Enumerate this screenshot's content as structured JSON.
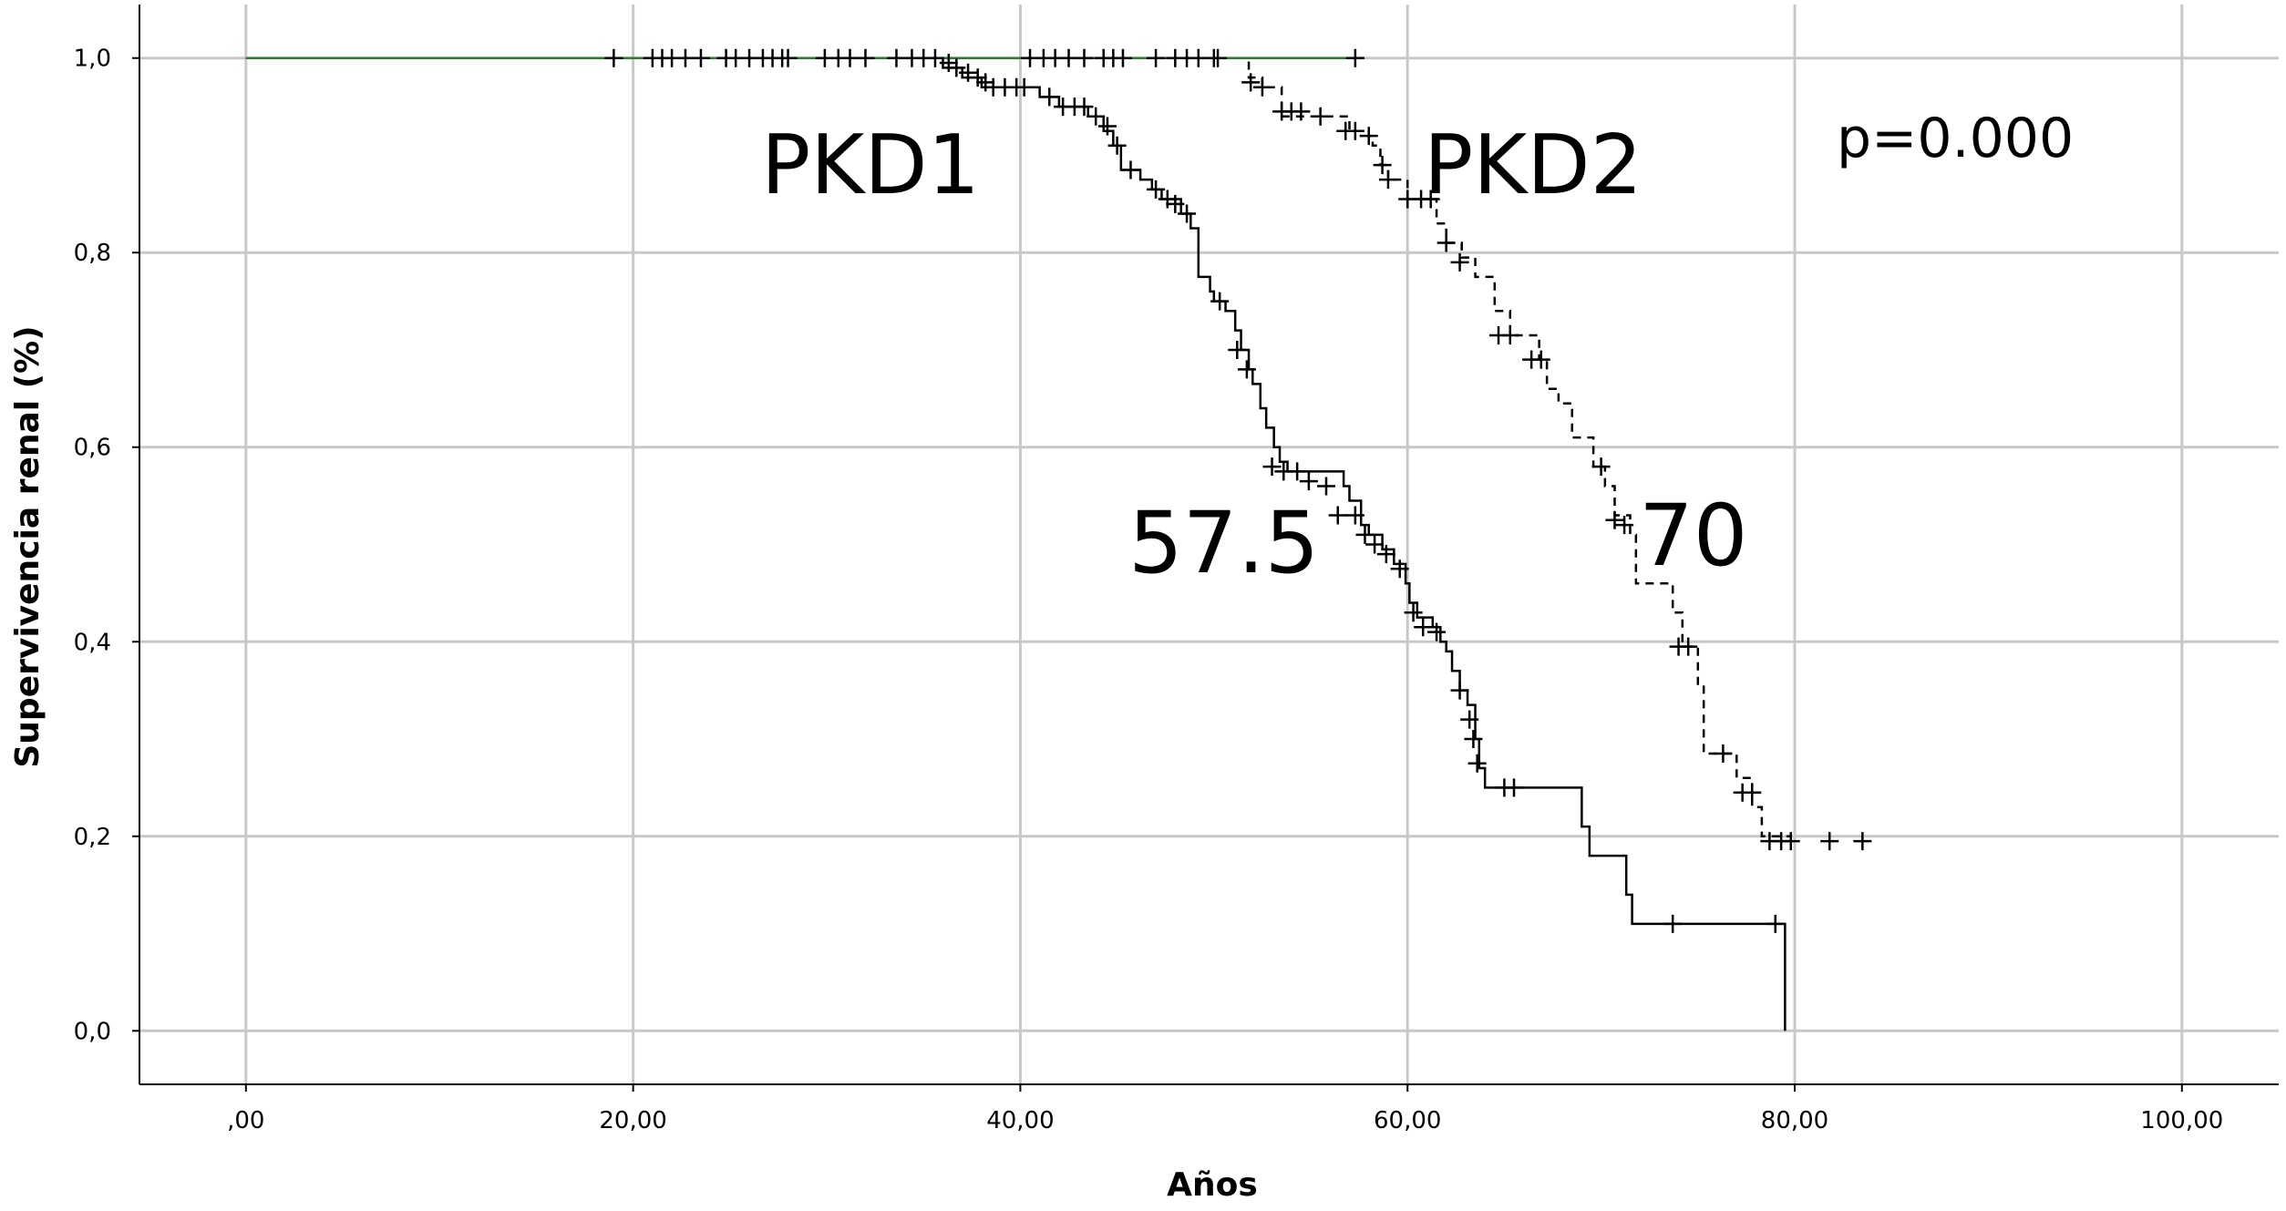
{
  "chart_data": {
    "type": "line",
    "subtype": "kaplan-meier",
    "xlabel": "Años",
    "ylabel": "Supervivencia renal (%)",
    "x_ticks": [
      ",00",
      "20,00",
      "40,00",
      "60,00",
      "80,00",
      "100,00"
    ],
    "x_tick_values": [
      0,
      20,
      40,
      60,
      80,
      100
    ],
    "y_ticks": [
      "0,0",
      "0,2",
      "0,4",
      "0,6",
      "0,8",
      "1,0"
    ],
    "y_tick_values": [
      0,
      0.2,
      0.4,
      0.6,
      0.8,
      1.0
    ],
    "xlim": [
      -5.5,
      105
    ],
    "ylim": [
      -0.055,
      1.055
    ],
    "grid": true,
    "legend": "none",
    "series": [
      {
        "name": "PKD1",
        "style": "solid",
        "color": "#000000",
        "steps": [
          [
            0,
            1.0
          ],
          [
            36,
            0.99
          ],
          [
            37,
            0.98
          ],
          [
            38,
            0.97
          ],
          [
            41,
            0.96
          ],
          [
            42,
            0.95
          ],
          [
            43.5,
            0.94
          ],
          [
            44.3,
            0.925
          ],
          [
            44.8,
            0.91
          ],
          [
            45.2,
            0.885
          ],
          [
            46.2,
            0.875
          ],
          [
            46.8,
            0.865
          ],
          [
            47.3,
            0.855
          ],
          [
            48.3,
            0.84
          ],
          [
            48.8,
            0.825
          ],
          [
            49.2,
            0.775
          ],
          [
            49.8,
            0.76
          ],
          [
            50,
            0.75
          ],
          [
            50.6,
            0.74
          ],
          [
            51.1,
            0.72
          ],
          [
            51.4,
            0.7
          ],
          [
            51.8,
            0.68
          ],
          [
            52,
            0.665
          ],
          [
            52.4,
            0.64
          ],
          [
            52.7,
            0.62
          ],
          [
            53.1,
            0.6
          ],
          [
            53.4,
            0.585
          ],
          [
            53.8,
            0.575
          ],
          [
            56.7,
            0.56
          ],
          [
            57,
            0.545
          ],
          [
            57.6,
            0.52
          ],
          [
            58,
            0.51
          ],
          [
            58.7,
            0.495
          ],
          [
            59.3,
            0.48
          ],
          [
            59.9,
            0.46
          ],
          [
            60.1,
            0.44
          ],
          [
            60.5,
            0.425
          ],
          [
            61.3,
            0.415
          ],
          [
            61.7,
            0.4
          ],
          [
            62,
            0.39
          ],
          [
            62.3,
            0.37
          ],
          [
            62.7,
            0.35
          ],
          [
            63.1,
            0.335
          ],
          [
            63.5,
            0.3
          ],
          [
            63.7,
            0.27
          ],
          [
            64,
            0.25
          ],
          [
            69,
            0.21
          ],
          [
            69.4,
            0.18
          ],
          [
            71.3,
            0.14
          ],
          [
            71.6,
            0.11
          ],
          [
            79.5,
            0.0
          ]
        ],
        "end_x": 79.5,
        "censored": [
          [
            19,
            1.0
          ],
          [
            21,
            1.0
          ],
          [
            21.5,
            1.0
          ],
          [
            22,
            1.0
          ],
          [
            22.7,
            1.0
          ],
          [
            23.5,
            1.0
          ],
          [
            24.8,
            1.0
          ],
          [
            25.3,
            1.0
          ],
          [
            26,
            1.0
          ],
          [
            26.7,
            1.0
          ],
          [
            27.2,
            1.0
          ],
          [
            27.7,
            1.0
          ],
          [
            28,
            1.0
          ],
          [
            29.9,
            1.0
          ],
          [
            30.6,
            1.0
          ],
          [
            31.2,
            1.0
          ],
          [
            32,
            1.0
          ],
          [
            33.6,
            1.0
          ],
          [
            34.4,
            1.0
          ],
          [
            35,
            1.0
          ],
          [
            35.6,
            1.0
          ],
          [
            36.3,
            0.995
          ],
          [
            36.7,
            0.99
          ],
          [
            37.3,
            0.985
          ],
          [
            37.8,
            0.98
          ],
          [
            38.2,
            0.975
          ],
          [
            38.6,
            0.97
          ],
          [
            39.2,
            0.97
          ],
          [
            39.8,
            0.97
          ],
          [
            40.2,
            0.97
          ],
          [
            41.5,
            0.96
          ],
          [
            42.2,
            0.95
          ],
          [
            42.8,
            0.95
          ],
          [
            43.3,
            0.95
          ],
          [
            43.9,
            0.94
          ],
          [
            44.5,
            0.93
          ],
          [
            45,
            0.91
          ],
          [
            45.7,
            0.885
          ],
          [
            47,
            0.865
          ],
          [
            47.6,
            0.855
          ],
          [
            48,
            0.85
          ],
          [
            48.6,
            0.84
          ],
          [
            50.3,
            0.75
          ],
          [
            51.2,
            0.7
          ],
          [
            51.7,
            0.68
          ],
          [
            53,
            0.58
          ],
          [
            53.6,
            0.575
          ],
          [
            54.3,
            0.575
          ],
          [
            54.9,
            0.565
          ],
          [
            55.8,
            0.56
          ],
          [
            56.4,
            0.53
          ],
          [
            57.3,
            0.53
          ],
          [
            57.8,
            0.51
          ],
          [
            58.3,
            0.5
          ],
          [
            58.9,
            0.49
          ],
          [
            59.6,
            0.475
          ],
          [
            60.3,
            0.43
          ],
          [
            60.8,
            0.415
          ],
          [
            61.5,
            0.41
          ],
          [
            62.7,
            0.35
          ],
          [
            63.2,
            0.32
          ],
          [
            63.4,
            0.3
          ],
          [
            63.6,
            0.275
          ],
          [
            65,
            0.25
          ],
          [
            65.5,
            0.25
          ],
          [
            73.7,
            0.11
          ],
          [
            79,
            0.11
          ]
        ]
      },
      {
        "name": "PKD2",
        "style": "dashed",
        "color": "#000000",
        "steps": [
          [
            0,
            1.0
          ],
          [
            51.8,
            0.98
          ],
          [
            52.5,
            0.97
          ],
          [
            53.5,
            0.94
          ],
          [
            57,
            0.925
          ],
          [
            58,
            0.92
          ],
          [
            58.2,
            0.91
          ],
          [
            58.6,
            0.89
          ],
          [
            59,
            0.875
          ],
          [
            60,
            0.855
          ],
          [
            61.5,
            0.83
          ],
          [
            62,
            0.81
          ],
          [
            62.8,
            0.795
          ],
          [
            63.5,
            0.775
          ],
          [
            64.5,
            0.74
          ],
          [
            65.3,
            0.715
          ],
          [
            66.8,
            0.69
          ],
          [
            67.2,
            0.66
          ],
          [
            67.8,
            0.645
          ],
          [
            68.5,
            0.61
          ],
          [
            69.6,
            0.58
          ],
          [
            70.2,
            0.56
          ],
          [
            70.7,
            0.53
          ],
          [
            71.5,
            0.51
          ],
          [
            71.8,
            0.46
          ],
          [
            73.7,
            0.43
          ],
          [
            74.2,
            0.395
          ],
          [
            75,
            0.355
          ],
          [
            75.3,
            0.285
          ],
          [
            77,
            0.26
          ],
          [
            77.8,
            0.23
          ],
          [
            78.3,
            0.2
          ],
          [
            79.8,
            0.2
          ]
        ],
        "end_x": 79.8,
        "censored": [
          [
            51.9,
            0.975
          ],
          [
            52.5,
            0.97
          ],
          [
            53.5,
            0.945
          ],
          [
            54,
            0.945
          ],
          [
            54.5,
            0.945
          ],
          [
            55.5,
            0.94
          ],
          [
            56.8,
            0.925
          ],
          [
            57.3,
            0.925
          ],
          [
            58,
            0.92
          ],
          [
            58.7,
            0.89
          ],
          [
            59,
            0.875
          ],
          [
            60,
            0.855
          ],
          [
            60.7,
            0.855
          ],
          [
            61.2,
            0.855
          ],
          [
            62,
            0.81
          ],
          [
            62.7,
            0.79
          ],
          [
            64.7,
            0.715
          ],
          [
            65.3,
            0.715
          ],
          [
            66.4,
            0.69
          ],
          [
            66.9,
            0.69
          ],
          [
            70,
            0.58
          ],
          [
            70.7,
            0.525
          ],
          [
            71.2,
            0.52
          ],
          [
            74,
            0.395
          ],
          [
            74.5,
            0.395
          ],
          [
            76.3,
            0.285
          ],
          [
            77.3,
            0.245
          ],
          [
            77.8,
            0.245
          ],
          [
            78.7,
            0.195
          ],
          [
            79.3,
            0.195
          ],
          [
            79.8,
            0.195
          ],
          [
            81.8,
            0.195
          ],
          [
            83.5,
            0.195
          ]
        ]
      },
      {
        "name": "",
        "style": "solid",
        "color": "#2e7d32",
        "steps": [
          [
            0,
            1.0
          ],
          [
            57.3,
            1.0
          ]
        ],
        "end_x": 57.3,
        "censored": [
          [
            40.5,
            1.0
          ],
          [
            41.2,
            1.0
          ],
          [
            41.8,
            1.0
          ],
          [
            42.5,
            1.0
          ],
          [
            43.3,
            1.0
          ],
          [
            44.3,
            1.0
          ],
          [
            44.8,
            1.0
          ],
          [
            45.3,
            1.0
          ],
          [
            47,
            1.0
          ],
          [
            48,
            1.0
          ],
          [
            48.6,
            1.0
          ],
          [
            49.2,
            1.0
          ],
          [
            50,
            1.0
          ],
          [
            50.2,
            1.0
          ],
          [
            57.3,
            1.0
          ]
        ]
      }
    ],
    "annotations": [
      "PKD1",
      "PKD2",
      "p=0.000",
      "57.5",
      "70"
    ]
  }
}
